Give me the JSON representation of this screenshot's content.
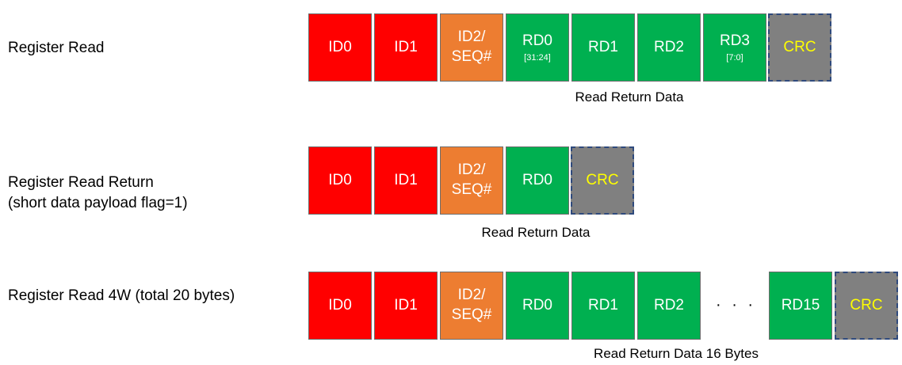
{
  "colors": {
    "id_field": "#ff0000",
    "seq_field": "#ed7d31",
    "data_field": "#00b050",
    "crc_field": "#808080",
    "crc_text": "#ffff00",
    "crc_border": "#2f4a7d"
  },
  "rows": [
    {
      "label_lines": [
        "Register Read",
        ""
      ],
      "caption": "Read Return Data",
      "boxes": [
        {
          "main": [
            "ID0",
            ""
          ],
          "sub": "",
          "kind": "id"
        },
        {
          "main": [
            "ID1",
            ""
          ],
          "sub": "",
          "kind": "id"
        },
        {
          "main": [
            "ID2/",
            "SEQ#"
          ],
          "sub": "",
          "kind": "seq"
        },
        {
          "main": [
            "RD0",
            ""
          ],
          "sub": "[31:24]",
          "kind": "data"
        },
        {
          "main": [
            "RD1",
            ""
          ],
          "sub": "",
          "kind": "data"
        },
        {
          "main": [
            "RD2",
            ""
          ],
          "sub": "",
          "kind": "data"
        },
        {
          "main": [
            "RD3",
            ""
          ],
          "sub": "[7:0]",
          "kind": "data"
        },
        {
          "main": [
            "CRC",
            ""
          ],
          "sub": "",
          "kind": "crc"
        }
      ]
    },
    {
      "label_lines": [
        "Register Read Return",
        "(short data payload flag=1)"
      ],
      "caption": "Read Return Data",
      "boxes": [
        {
          "main": [
            "ID0",
            ""
          ],
          "sub": "",
          "kind": "id"
        },
        {
          "main": [
            "ID1",
            ""
          ],
          "sub": "",
          "kind": "id"
        },
        {
          "main": [
            "ID2/",
            "SEQ#"
          ],
          "sub": "",
          "kind": "seq"
        },
        {
          "main": [
            "RD0",
            ""
          ],
          "sub": "",
          "kind": "data"
        },
        {
          "main": [
            "CRC",
            ""
          ],
          "sub": "",
          "kind": "crc"
        }
      ]
    },
    {
      "label_lines": [
        "Register Read 4W (total 20 bytes)",
        ""
      ],
      "caption": "Read Return Data 16 Bytes",
      "ellipsis": "· · ·",
      "boxes": [
        {
          "main": [
            "ID0",
            ""
          ],
          "sub": "",
          "kind": "id"
        },
        {
          "main": [
            "ID1",
            ""
          ],
          "sub": "",
          "kind": "id"
        },
        {
          "main": [
            "ID2/",
            "SEQ#"
          ],
          "sub": "",
          "kind": "seq"
        },
        {
          "main": [
            "RD0",
            ""
          ],
          "sub": "",
          "kind": "data"
        },
        {
          "main": [
            "RD1",
            ""
          ],
          "sub": "",
          "kind": "data"
        },
        {
          "main": [
            "RD2",
            ""
          ],
          "sub": "",
          "kind": "data"
        },
        {
          "main": [
            "RD15",
            ""
          ],
          "sub": "",
          "kind": "data"
        },
        {
          "main": [
            "CRC",
            ""
          ],
          "sub": "",
          "kind": "crc"
        }
      ]
    }
  ]
}
